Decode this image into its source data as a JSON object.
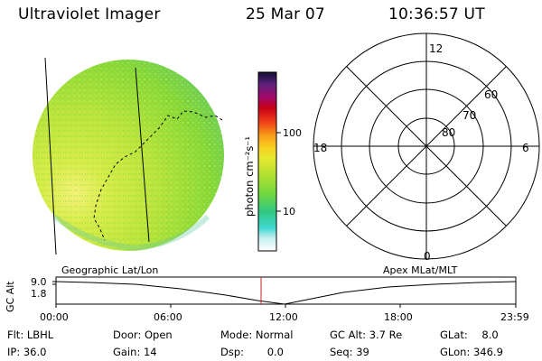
{
  "header": {
    "title": "Ultraviolet Imager",
    "date": "25 Mar 07",
    "time": "10:36:57 UT"
  },
  "colorbar": {
    "unit_label": "photon cm⁻²s⁻¹",
    "tick_100": "100",
    "tick_10": "10"
  },
  "polar": {
    "mlt_labels": {
      "top": "12",
      "left": "18",
      "right": "6",
      "bottom": "0"
    },
    "lat_labels": [
      "60",
      "70",
      "80"
    ]
  },
  "timeline": {
    "axis_label": "GC Alt",
    "left_label": "Geographic Lat/Lon",
    "right_label": "Apex MLat/MLT",
    "y_ticks": [
      "9.0",
      "1.8"
    ],
    "x_ticks": [
      "00:00",
      "06:00",
      "12:00",
      "18:00",
      "23:59"
    ],
    "current_time_fraction": 0.446
  },
  "status": {
    "flt": {
      "label": "Flt:",
      "value": "LBHL"
    },
    "ip": {
      "label": "IP:",
      "value": "36.0"
    },
    "door": {
      "label": "Door:",
      "value": "Open"
    },
    "gain": {
      "label": "Gain:",
      "value": "14"
    },
    "mode": {
      "label": "Mode:",
      "value": "Normal"
    },
    "dsp": {
      "label": "Dsp:",
      "value": "0.0"
    },
    "gcalt": {
      "label": "GC Alt:",
      "value": "3.7 Re"
    },
    "seq": {
      "label": "Seq:",
      "value": "39"
    },
    "glat": {
      "label": "GLat:",
      "value": "8.0"
    },
    "glon": {
      "label": "GLon:",
      "value": "346.9"
    }
  },
  "colors": {
    "disk_yellow": "#c8e83a",
    "disk_green": "#7cd62e",
    "disk_light": "#f0f070",
    "marker_red": "#cc2222"
  }
}
